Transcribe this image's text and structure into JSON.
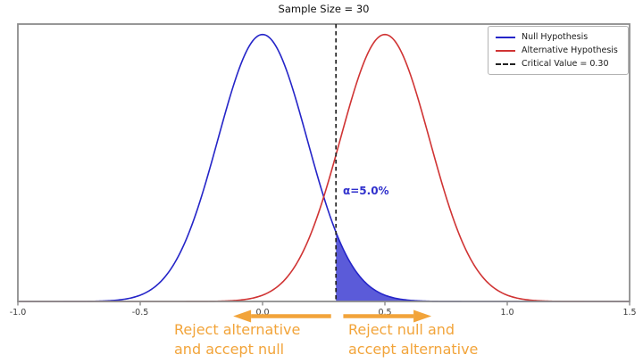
{
  "chart_data": {
    "type": "line",
    "title": "Sample Size = 30",
    "xlabel": "",
    "ylabel": "",
    "xlim": [
      -1.0,
      1.5
    ],
    "ylim": [
      0,
      2.27
    ],
    "grid": false,
    "x_ticks": [
      -1.0,
      -0.5,
      0.0,
      0.5,
      1.0,
      1.5
    ],
    "series": [
      {
        "name": "Null Hypothesis",
        "distribution": "normal",
        "mean": 0.0,
        "sd": 0.1826,
        "color": "#2525c8"
      },
      {
        "name": "Alternative Hypothesis",
        "distribution": "normal",
        "mean": 0.5,
        "sd": 0.1826,
        "color": "#d03434"
      }
    ],
    "critical_line": {
      "x": 0.3,
      "label": "Critical Value = 0.30",
      "color": "#222222",
      "style": "dashed"
    },
    "alpha": {
      "label": "α=5.0%",
      "value": 0.05,
      "color": "#3030cc"
    },
    "shaded_region": {
      "series": "Null Hypothesis",
      "from": 0.3,
      "to": 1.5,
      "fill": "#5b5bd9"
    },
    "legend": {
      "position": "upper right",
      "items": [
        {
          "label": "Null Hypothesis",
          "color": "#2525c8",
          "style": "solid"
        },
        {
          "label": "Alternative Hypothesis",
          "color": "#d03434",
          "style": "solid"
        },
        {
          "label": "Critical Value = 0.30",
          "color": "#222222",
          "style": "dashed"
        }
      ]
    },
    "annotations": [
      {
        "id": "reject-alternative",
        "line1": "Reject alternative",
        "line2": "and accept null",
        "color": "#f2a43a",
        "arrow": {
          "direction": "left",
          "from_x": 0.28,
          "to_x": -0.12
        }
      },
      {
        "id": "reject-null",
        "line1": "Reject null and",
        "line2": "accept alternative",
        "color": "#f2a43a",
        "arrow": {
          "direction": "right",
          "from_x": 0.33,
          "to_x": 0.69
        }
      }
    ],
    "axis_color": "#8c8c8c",
    "tick_label_color": "#3a3a3a"
  }
}
